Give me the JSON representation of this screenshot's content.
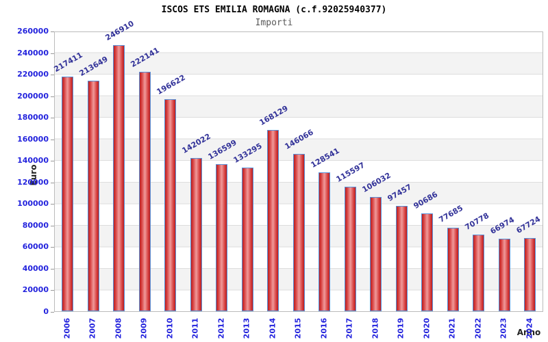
{
  "chart_data": {
    "type": "bar",
    "title": "ISCOS ETS EMILIA ROMAGNA (c.f.92025940377)",
    "subtitle": "Importi",
    "xlabel": "Anno",
    "ylabel": "Euro",
    "categories": [
      "2006",
      "2007",
      "2008",
      "2009",
      "2010",
      "2011",
      "2012",
      "2013",
      "2014",
      "2015",
      "2016",
      "2017",
      "2018",
      "2019",
      "2020",
      "2021",
      "2022",
      "2023",
      "2024"
    ],
    "values": [
      217411,
      213649,
      246910,
      222141,
      196622,
      142022,
      136599,
      133295,
      168129,
      146066,
      128541,
      115597,
      106032,
      97457,
      90686,
      77685,
      70778,
      66974,
      67724
    ],
    "ylim": [
      0,
      260000
    ],
    "ytick_step": 20000,
    "grid": true,
    "legend": "none"
  },
  "colors": {
    "bar_edge": "#bb1e1e",
    "bar_body": "#d84444",
    "bar_mid": "#f09a9a",
    "bar_border": "#5590d9",
    "value_label": "#333399",
    "tick_label": "#2323dd",
    "axis_title": "#222222",
    "grid_line": "#dddddd",
    "band": "#f3f3f3",
    "plot_border": "#bbbbbb"
  }
}
